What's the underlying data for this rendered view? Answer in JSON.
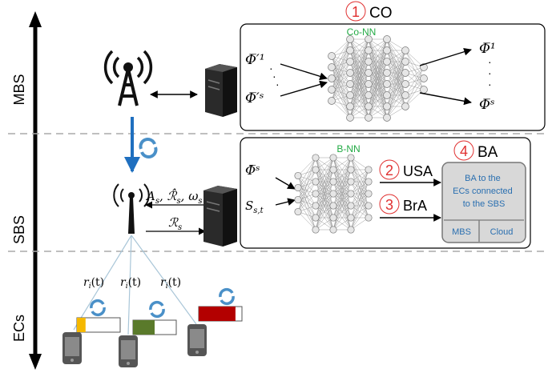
{
  "layers": {
    "mbs": "MBS",
    "sbs": "SBS",
    "ecs": "ECs"
  },
  "co": {
    "badge": "1",
    "title": "CO",
    "nn_label": "Co-NN",
    "inputs": [
      "Φ̅′¹",
      "Φ̅′ˢ"
    ],
    "outputs": [
      "Φ̅¹",
      "Φ̅ˢ"
    ]
  },
  "ba": {
    "badge": "4",
    "title": "BA",
    "nn_label": "B-NN",
    "inputs": [
      "Φ̅ˢ",
      "S"
    ],
    "input_sub": "s,t",
    "usa_badge": "2",
    "usa": "USA",
    "bra_badge": "3",
    "bra": "BrA",
    "panel_text": [
      "BA to the",
      "ECs connected",
      "to the SBS"
    ],
    "mbs_option": "MBS",
    "cloud_option": "Cloud"
  },
  "sbs_signals": {
    "down": "A",
    "down_sub": "s",
    "mid": "ℛ̂",
    "mid_sub": "s",
    "omega": "ω",
    "omega_sub": "s",
    "up": "ℛ",
    "up_sub": "s"
  },
  "links": [
    {
      "label": "r",
      "sub": "i",
      "suffix": "(t)"
    },
    {
      "label": "r",
      "sub": "i",
      "suffix": "(t)"
    },
    {
      "label": "r",
      "sub": "i",
      "suffix": "(t)"
    }
  ],
  "buffers": [
    {
      "fill": 0.2,
      "color": "#f5b800"
    },
    {
      "fill": 0.5,
      "color": "#5a7a2b"
    },
    {
      "fill": 0.85,
      "color": "#b30000"
    }
  ],
  "colors": {
    "accent_green": "#22aa44",
    "sync_blue": "#4a90c8",
    "badge_red": "#e03030",
    "panel_text": "#2a6fb0"
  }
}
